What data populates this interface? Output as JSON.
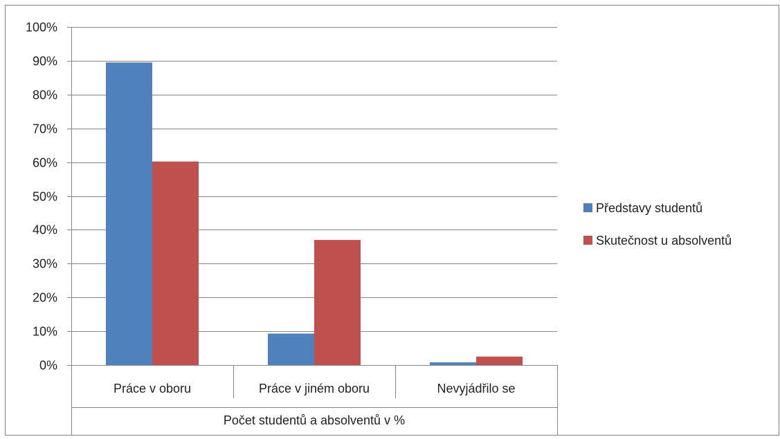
{
  "colors": {
    "series_1": "#4F81BD",
    "series_2": "#C0504D",
    "gridline": "#868686",
    "axis": "#868686",
    "frame_border": "#7F7F7F"
  },
  "chart_data": {
    "type": "bar",
    "categories": [
      "Práce v oboru",
      "Práce v jiném oboru",
      "Nevyjádřilo se"
    ],
    "group_label": "Počet studentů a absolventů v %",
    "series": [
      {
        "name": "Představy studentů",
        "values": [
          89.5,
          9.3,
          0.8
        ]
      },
      {
        "name": "Skutečnost u  absolventů",
        "values": [
          60.2,
          37.0,
          2.5
        ]
      }
    ],
    "ylim": [
      0,
      100
    ],
    "y_ticks": [
      "0%",
      "10%",
      "20%",
      "30%",
      "40%",
      "50%",
      "60%",
      "70%",
      "80%",
      "90%",
      "100%"
    ],
    "grid": true,
    "legend_position": "right"
  }
}
